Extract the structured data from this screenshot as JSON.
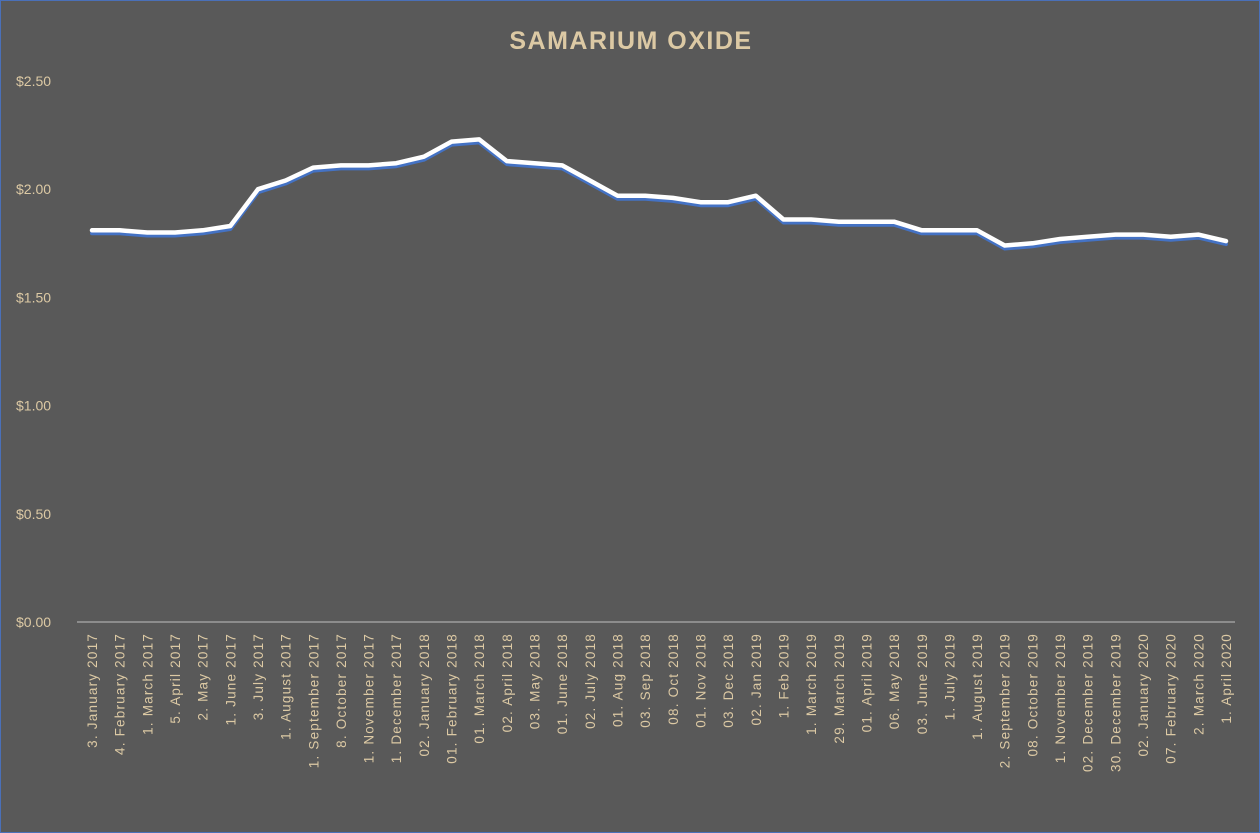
{
  "chart_data": {
    "type": "line",
    "title": "SAMARIUM OXIDE",
    "xlabel": "",
    "ylabel": "",
    "ylim": [
      0,
      2.5
    ],
    "yticks": [
      "$0.00",
      "$0.50",
      "$1.00",
      "$1.50",
      "$2.00",
      "$2.50"
    ],
    "grid": false,
    "drop_lines": true,
    "legend": "none",
    "categories": [
      "3. January 2017",
      "4. February 2017",
      "1. March 2017",
      "5. April 2017",
      "2. May 2017",
      "1. June 2017",
      "3. July 2017",
      "1. August 2017",
      "1. September 2017",
      "8. October 2017",
      "1. November 2017",
      "1. December 2017",
      "02. January 2018",
      "01. February 2018",
      "01. March 2018",
      "02. April 2018",
      "03. May 2018",
      "01. June 2018",
      "02. July 2018",
      "01. Aug 2018",
      "03. Sep 2018",
      "08. Oct 2018",
      "01. Nov 2018",
      "03. Dec 2018",
      "02. Jan 2019",
      "1. Feb 2019",
      "1. March 2019",
      "29. March 2019",
      "01. April 2019",
      "06. May 2018",
      "03. June 2019",
      "1. July 2019",
      "1. August 2019",
      "2. September 2019",
      "08. October 2019",
      "1. November 2019",
      "02. December 2019",
      "30. December 2019",
      "02. January 2020",
      "07. February 2020",
      "2. March 2020",
      "1. April 2020"
    ],
    "series": [
      {
        "values": [
          1.81,
          1.81,
          1.8,
          1.8,
          1.81,
          1.83,
          2.0,
          2.04,
          2.1,
          2.11,
          2.11,
          2.12,
          2.15,
          2.22,
          2.23,
          2.13,
          2.12,
          2.11,
          2.04,
          1.97,
          1.97,
          1.96,
          1.94,
          1.94,
          1.97,
          1.86,
          1.86,
          1.85,
          1.85,
          1.85,
          1.81,
          1.81,
          1.81,
          1.74,
          1.75,
          1.77,
          1.78,
          1.79,
          1.79,
          1.78,
          1.79,
          1.76
        ]
      }
    ],
    "colors": {
      "background": "#595959",
      "line": "#ffffff",
      "line_shadow": "#4472c4",
      "text": "#dcc9a4",
      "axis": "#bfbfbf",
      "border": "#4a70b8"
    }
  }
}
